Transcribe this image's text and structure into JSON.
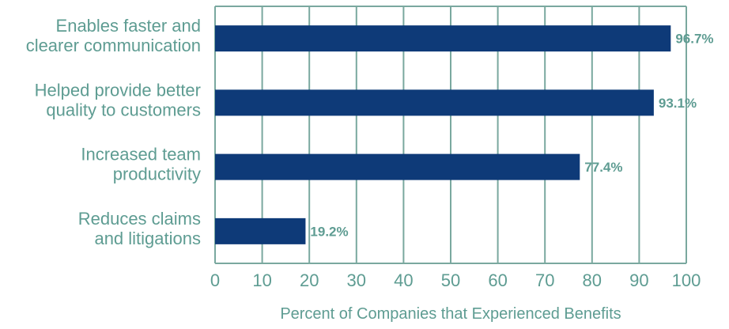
{
  "chart_data": {
    "type": "bar",
    "orientation": "horizontal",
    "categories": [
      [
        "Enables faster and",
        "clearer communication"
      ],
      [
        "Helped provide better",
        "quality to customers"
      ],
      [
        "Increased team",
        "productivity"
      ],
      [
        "Reduces claims",
        "and litigations"
      ]
    ],
    "values": [
      96.7,
      93.1,
      77.4,
      19.2
    ],
    "value_labels": [
      "96.7%",
      "93.1%",
      "77.4%",
      "19.2%"
    ],
    "xlabel": "Percent of Companies that Experienced Benefits",
    "ylabel": "",
    "xlim": [
      0,
      100
    ],
    "x_ticks": [
      0,
      10,
      20,
      30,
      40,
      50,
      60,
      70,
      80,
      90,
      100
    ],
    "grid": true,
    "colors": {
      "bar": "#0e3a78",
      "grid": "#7aa89f",
      "text": "#5e9c92"
    }
  }
}
